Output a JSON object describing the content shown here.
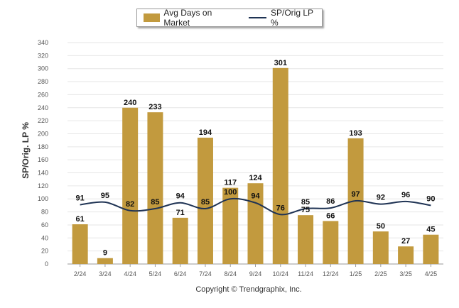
{
  "chart_data": {
    "type": "bar",
    "categories": [
      "2/24",
      "3/24",
      "4/24",
      "5/24",
      "6/24",
      "7/24",
      "8/24",
      "9/24",
      "10/24",
      "11/24",
      "12/24",
      "1/25",
      "2/25",
      "3/25",
      "4/25"
    ],
    "series": [
      {
        "name": "Avg Days on Market",
        "type": "bar",
        "color": "#c29a3e",
        "values": [
          61,
          9,
          240,
          233,
          71,
          194,
          117,
          124,
          301,
          75,
          66,
          193,
          50,
          27,
          45
        ]
      },
      {
        "name": "SP/Orig LP %",
        "type": "line",
        "color": "#1f3354",
        "values": [
          91,
          95,
          82,
          85,
          94,
          85,
          100,
          94,
          76,
          85,
          86,
          97,
          92,
          96,
          90
        ]
      }
    ],
    "ylabel": "SP/Orig. LP %",
    "ylim": [
      0,
      340
    ],
    "yticks": [
      0,
      20,
      40,
      60,
      80,
      100,
      120,
      140,
      160,
      180,
      200,
      220,
      240,
      260,
      280,
      300,
      320,
      340
    ],
    "grid": true,
    "legend_position": "top-center"
  },
  "footer": "Copyright © Trendgraphix, Inc."
}
